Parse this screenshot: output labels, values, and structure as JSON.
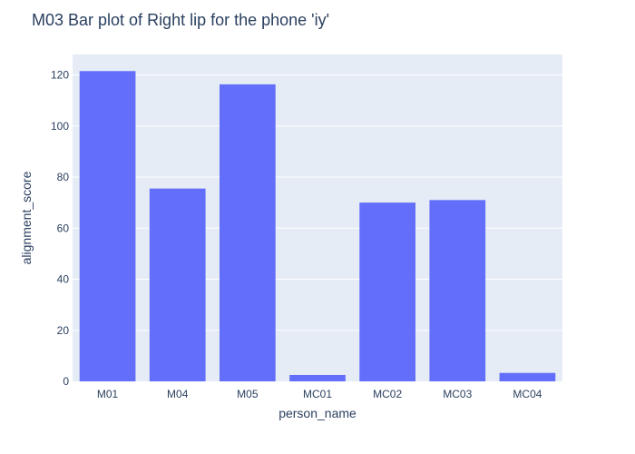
{
  "chart_data": {
    "type": "bar",
    "title": "M03 Bar plot of Right lip for the phone 'iy'",
    "xlabel": "person_name",
    "ylabel": "alignment_score",
    "categories": [
      "M01",
      "M04",
      "M05",
      "MC01",
      "MC02",
      "MC03",
      "MC04"
    ],
    "values": [
      121.5,
      75.5,
      116.3,
      2.5,
      70.0,
      71.0,
      3.3
    ],
    "ylim": [
      0,
      128
    ],
    "yticks": [
      0,
      20,
      40,
      60,
      80,
      100,
      120
    ],
    "grid": true,
    "legend": "none",
    "colors": {
      "bar": "#636efa",
      "plot_background": "#e5ecf6",
      "grid": "#ffffff",
      "text": "#2a3f5f"
    }
  }
}
